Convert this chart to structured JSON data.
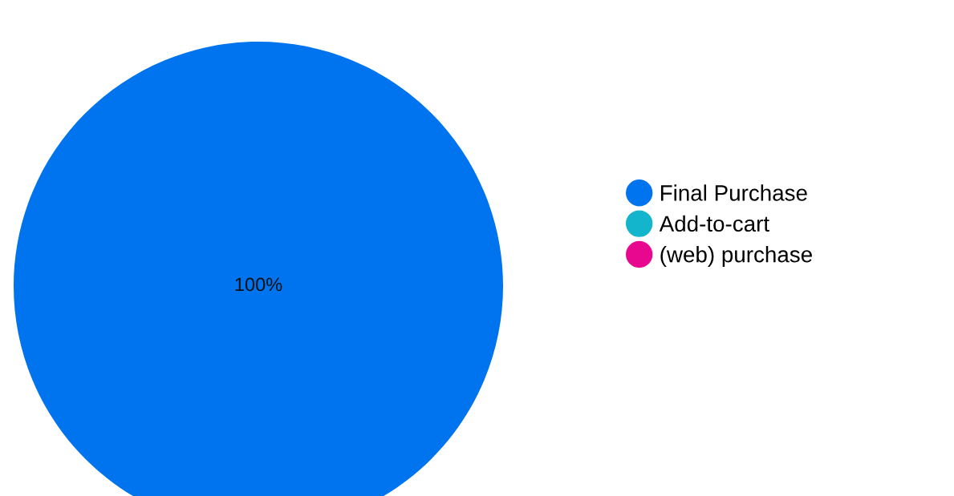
{
  "chart_data": {
    "type": "pie",
    "categories": [
      "Final Purchase",
      "Add-to-cart",
      "(web) purchase"
    ],
    "values": [
      100,
      0,
      0
    ],
    "colors": [
      "#0073ee",
      "#12b5cb",
      "#e8088f"
    ],
    "value_labels": [
      "100%",
      null,
      null
    ],
    "legend": "right"
  }
}
